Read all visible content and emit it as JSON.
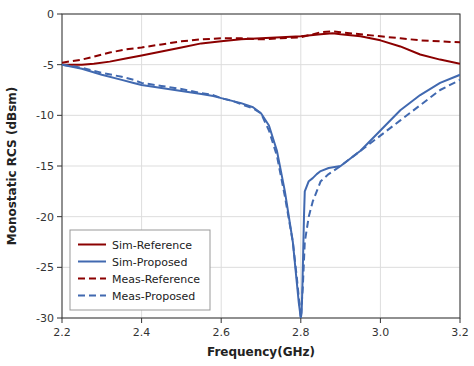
{
  "chart_data": {
    "type": "line",
    "xlabel": "Frequency(GHz)",
    "ylabel": "Monostatic RCS (dBsm)",
    "xlim": [
      2.2,
      3.2
    ],
    "ylim": [
      -30,
      0
    ],
    "xticks": [
      2.2,
      2.4,
      2.6,
      2.8,
      {
        "value": 3.0,
        "label": "3.0"
      },
      3.2
    ],
    "yticks": [
      0,
      -5,
      -10,
      -15,
      -20,
      -25,
      -30
    ],
    "grid": true,
    "legend": "lower left",
    "series": [
      {
        "name": "Sim-Reference",
        "color": "#8B0000",
        "line_style": "solid",
        "x": [
          2.2,
          2.25,
          2.28,
          2.32,
          2.36,
          2.4,
          2.45,
          2.5,
          2.55,
          2.6,
          2.65,
          2.7,
          2.75,
          2.8,
          2.85,
          2.88,
          2.9,
          2.95,
          3.0,
          3.05,
          3.1,
          3.15,
          3.2
        ],
        "values": [
          -5.0,
          -5.0,
          -4.9,
          -4.7,
          -4.4,
          -4.1,
          -3.7,
          -3.3,
          -2.9,
          -2.7,
          -2.5,
          -2.4,
          -2.3,
          -2.2,
          -2.0,
          -1.9,
          -2.0,
          -2.2,
          -2.6,
          -3.2,
          -4.0,
          -4.5,
          -4.9
        ]
      },
      {
        "name": "Sim-Proposed",
        "color": "#4169B0",
        "line_style": "solid",
        "x": [
          2.2,
          2.25,
          2.3,
          2.35,
          2.38,
          2.4,
          2.45,
          2.5,
          2.55,
          2.58,
          2.6,
          2.63,
          2.65,
          2.68,
          2.7,
          2.72,
          2.74,
          2.76,
          2.78,
          2.79,
          2.795,
          2.8,
          2.802,
          2.804,
          2.806,
          2.808,
          2.81,
          2.82,
          2.83,
          2.84,
          2.85,
          2.87,
          2.9,
          2.95,
          3.0,
          3.05,
          3.1,
          3.15,
          3.2
        ],
        "values": [
          -5.0,
          -5.4,
          -6.0,
          -6.5,
          -6.8,
          -7.0,
          -7.3,
          -7.6,
          -7.9,
          -8.1,
          -8.3,
          -8.6,
          -8.8,
          -9.2,
          -9.8,
          -11.0,
          -13.5,
          -17.5,
          -22.5,
          -26.5,
          -28.5,
          -30.0,
          -29.5,
          -27.0,
          -23.5,
          -20.0,
          -17.5,
          -16.5,
          -16.2,
          -15.8,
          -15.5,
          -15.2,
          -15.0,
          -13.5,
          -11.5,
          -9.5,
          -8.0,
          -6.8,
          -6.0
        ]
      },
      {
        "name": "Meas-Reference",
        "color": "#8B0000",
        "line_style": "dashed",
        "x": [
          2.2,
          2.25,
          2.28,
          2.32,
          2.36,
          2.4,
          2.45,
          2.5,
          2.55,
          2.6,
          2.65,
          2.7,
          2.75,
          2.8,
          2.85,
          2.88,
          2.9,
          2.95,
          3.0,
          3.05,
          3.1,
          3.15,
          3.2
        ],
        "values": [
          -4.8,
          -4.5,
          -4.2,
          -3.8,
          -3.5,
          -3.3,
          -3.0,
          -2.7,
          -2.5,
          -2.4,
          -2.4,
          -2.5,
          -2.4,
          -2.3,
          -1.8,
          -1.7,
          -1.8,
          -2.0,
          -2.2,
          -2.4,
          -2.6,
          -2.7,
          -2.8
        ]
      },
      {
        "name": "Meas-Proposed",
        "color": "#4169B0",
        "line_style": "dashed",
        "x": [
          2.2,
          2.25,
          2.3,
          2.35,
          2.38,
          2.4,
          2.45,
          2.5,
          2.55,
          2.58,
          2.6,
          2.63,
          2.65,
          2.68,
          2.7,
          2.72,
          2.74,
          2.76,
          2.78,
          2.79,
          2.795,
          2.8,
          2.805,
          2.81,
          2.82,
          2.83,
          2.84,
          2.85,
          2.87,
          2.9,
          2.95,
          3.0,
          3.05,
          3.1,
          3.15,
          3.2
        ],
        "values": [
          -5.0,
          -5.3,
          -5.8,
          -6.2,
          -6.5,
          -6.8,
          -7.1,
          -7.4,
          -7.8,
          -8.0,
          -8.3,
          -8.6,
          -8.9,
          -9.3,
          -9.8,
          -11.5,
          -14.0,
          -18.0,
          -22.5,
          -26.0,
          -28.0,
          -30.0,
          -27.0,
          -22.5,
          -20.0,
          -18.5,
          -17.5,
          -16.5,
          -15.8,
          -15.0,
          -13.5,
          -12.0,
          -10.5,
          -9.0,
          -7.5,
          -6.5
        ]
      }
    ]
  }
}
